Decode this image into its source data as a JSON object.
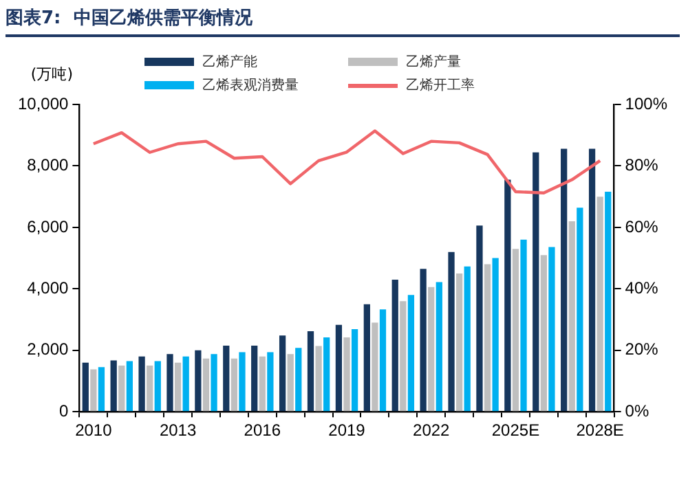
{
  "chart_data": {
    "type": "bar",
    "title": "图表7:  中国乙烯供需平衡情况",
    "ylabel": "(万吨)",
    "categories": [
      "2010",
      null,
      null,
      "2013",
      null,
      null,
      "2016",
      null,
      null,
      "2019",
      null,
      null,
      "2022",
      null,
      null,
      "2025E",
      null,
      null,
      "2028E"
    ],
    "series": [
      {
        "name": "乙烯产能",
        "color": "#17375e",
        "values": [
          1600,
          1670,
          1800,
          1880,
          2000,
          2150,
          2150,
          2480,
          2620,
          2830,
          3500,
          4300,
          4650,
          5200,
          6060,
          7550,
          8440,
          8560,
          8560
        ]
      },
      {
        "name": "乙烯产量",
        "color": "#bfbfbf",
        "values": [
          1380,
          1500,
          1500,
          1600,
          1730,
          1730,
          1800,
          1880,
          2140,
          2420,
          2900,
          3600,
          4060,
          4500,
          4800,
          5300,
          5100,
          6200,
          7000
        ]
      },
      {
        "name": "乙烯表观消费量",
        "color": "#00b0f0",
        "values": [
          1450,
          1650,
          1650,
          1800,
          1880,
          1940,
          1940,
          2080,
          2420,
          2690,
          3330,
          3800,
          4220,
          4730,
          5000,
          5600,
          5360,
          6640,
          7160
        ]
      },
      {
        "name": "乙烯开工率",
        "type": "line",
        "axis": "y2",
        "color": "#f0666a",
        "values": [
          87.2,
          90.8,
          84.4,
          87.2,
          88,
          82.5,
          83,
          74.2,
          81.7,
          84.5,
          91.4,
          84,
          88,
          87.5,
          83.7,
          71.6,
          71.2,
          75.5,
          81.7
        ]
      }
    ],
    "ylim": [
      0,
      10000
    ],
    "yticks": [
      0,
      {
        "value": 2000,
        "label": "2,000"
      },
      {
        "value": 4000,
        "label": "4,000"
      },
      {
        "value": 6000,
        "label": "6,000"
      },
      {
        "value": 8000,
        "label": "8,000"
      },
      {
        "value": 10000,
        "label": "10,000"
      }
    ],
    "y2lim": [
      0,
      100
    ],
    "y2ticks": [
      {
        "value": 0,
        "label": "0%"
      },
      {
        "value": 20,
        "label": "20%"
      },
      {
        "value": 40,
        "label": "40%"
      },
      {
        "value": 60,
        "label": "60%"
      },
      {
        "value": 80,
        "label": "80%"
      },
      {
        "value": 100,
        "label": "100%"
      }
    ],
    "legend": "top",
    "grid": false,
    "marker": "none"
  }
}
